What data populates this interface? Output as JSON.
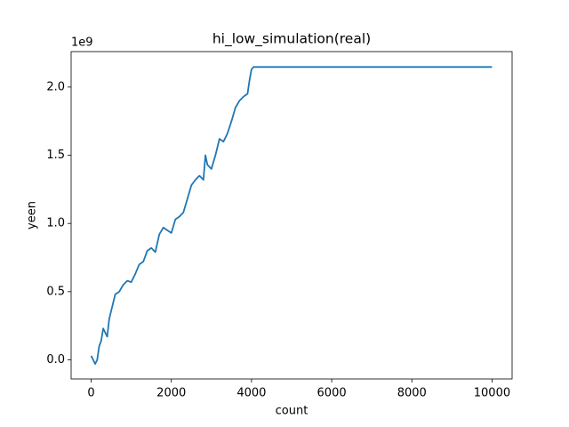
{
  "chart_data": {
    "type": "line",
    "title": "hi_low_simulation(real)",
    "x_label": "count",
    "y_label": "yeen",
    "y_offset_label": "1e9",
    "x": [
      0,
      50,
      100,
      150,
      200,
      250,
      300,
      350,
      400,
      450,
      500,
      550,
      600,
      700,
      800,
      900,
      1000,
      1100,
      1200,
      1300,
      1400,
      1500,
      1600,
      1700,
      1800,
      1900,
      2000,
      2100,
      2200,
      2300,
      2400,
      2500,
      2600,
      2700,
      2800,
      2850,
      2900,
      3000,
      3100,
      3200,
      3300,
      3400,
      3500,
      3600,
      3700,
      3800,
      3900,
      3950,
      4000,
      4050,
      10000
    ],
    "values": [
      0.03,
      0.0,
      -0.03,
      0.0,
      0.1,
      0.14,
      0.23,
      0.2,
      0.17,
      0.3,
      0.36,
      0.42,
      0.48,
      0.5,
      0.55,
      0.58,
      0.57,
      0.63,
      0.7,
      0.72,
      0.8,
      0.82,
      0.79,
      0.92,
      0.97,
      0.95,
      0.93,
      1.03,
      1.05,
      1.08,
      1.18,
      1.28,
      1.32,
      1.35,
      1.32,
      1.5,
      1.43,
      1.4,
      1.5,
      1.62,
      1.6,
      1.66,
      1.75,
      1.85,
      1.9,
      1.93,
      1.95,
      2.05,
      2.13,
      2.147,
      2.147
    ],
    "color": "#1f77b4",
    "xlim": [
      -500,
      10500
    ],
    "xticks": [
      0,
      2000,
      4000,
      6000,
      8000,
      10000
    ],
    "ylim": [
      -0.14,
      2.26
    ],
    "yticks": [
      {
        "value": 0,
        "label": "0.0"
      },
      0.5,
      {
        "value": 1,
        "label": "1.0"
      },
      1.5,
      {
        "value": 2,
        "label": "2.0"
      }
    ]
  }
}
